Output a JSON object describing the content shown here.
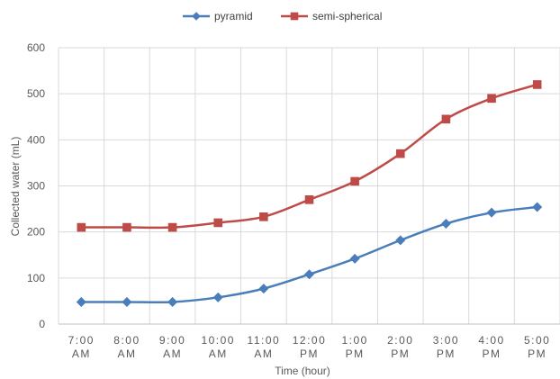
{
  "chart_data": {
    "type": "line",
    "title": "",
    "xlabel": "Time (hour)",
    "ylabel": "Collected water (mL)",
    "ylim": [
      0,
      600
    ],
    "yticks": [
      0,
      100,
      200,
      300,
      400,
      500,
      600
    ],
    "grid": true,
    "legend_position": "top",
    "categories": [
      [
        "7:00",
        "AM"
      ],
      [
        "8:00",
        "AM"
      ],
      [
        "9:00",
        "AM"
      ],
      [
        "10:00",
        "AM"
      ],
      [
        "11:00",
        "AM"
      ],
      [
        "12:00",
        "PM"
      ],
      [
        "1:00",
        "PM"
      ],
      [
        "2:00",
        "PM"
      ],
      [
        "3:00",
        "PM"
      ],
      [
        "4:00",
        "PM"
      ],
      [
        "5:00",
        "PM"
      ]
    ],
    "series": [
      {
        "name": "pyramid",
        "color": "#4a7ebb",
        "marker": "diamond",
        "values": [
          48,
          48,
          48,
          58,
          77,
          108,
          142,
          182,
          218,
          242,
          254
        ]
      },
      {
        "name": "semi-spherical",
        "color": "#be4b48",
        "marker": "square",
        "values": [
          210,
          210,
          210,
          220,
          233,
          270,
          310,
          370,
          445,
          490,
          520
        ]
      }
    ]
  }
}
